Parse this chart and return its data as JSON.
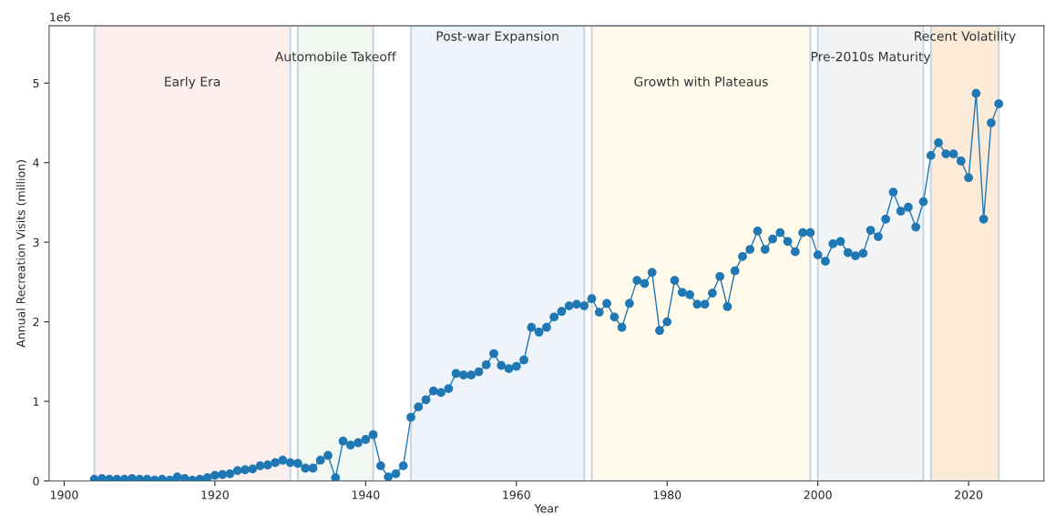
{
  "chart_data": {
    "type": "line",
    "xlabel": "Year",
    "ylabel": "Annual Recreation Visits (million)",
    "annotations": [
      "1e6"
    ],
    "x": [
      1904,
      1905,
      1906,
      1907,
      1908,
      1909,
      1910,
      1911,
      1912,
      1913,
      1914,
      1915,
      1916,
      1917,
      1918,
      1919,
      1920,
      1921,
      1922,
      1923,
      1924,
      1925,
      1926,
      1927,
      1928,
      1929,
      1930,
      1931,
      1932,
      1933,
      1934,
      1935,
      1936,
      1937,
      1938,
      1939,
      1940,
      1941,
      1942,
      1943,
      1944,
      1945,
      1946,
      1947,
      1948,
      1949,
      1950,
      1951,
      1952,
      1953,
      1954,
      1955,
      1956,
      1957,
      1958,
      1959,
      1960,
      1961,
      1962,
      1963,
      1964,
      1965,
      1966,
      1967,
      1968,
      1969,
      1970,
      1971,
      1972,
      1973,
      1974,
      1975,
      1976,
      1977,
      1978,
      1979,
      1980,
      1981,
      1982,
      1983,
      1984,
      1985,
      1986,
      1987,
      1988,
      1989,
      1990,
      1991,
      1992,
      1993,
      1994,
      1995,
      1996,
      1997,
      1998,
      1999,
      2000,
      2001,
      2002,
      2003,
      2004,
      2005,
      2006,
      2007,
      2008,
      2009,
      2010,
      2011,
      2012,
      2013,
      2014,
      2015,
      2016,
      2017,
      2018,
      2019,
      2020,
      2021,
      2022,
      2023,
      2024
    ],
    "series": [
      {
        "color": "#1f77b4",
        "values": [
          0.02,
          0.03,
          0.02,
          0.02,
          0.02,
          0.03,
          0.02,
          0.02,
          0.01,
          0.02,
          0.01,
          0.05,
          0.03,
          0.01,
          0.02,
          0.04,
          0.07,
          0.08,
          0.09,
          0.13,
          0.14,
          0.15,
          0.19,
          0.2,
          0.23,
          0.26,
          0.23,
          0.22,
          0.16,
          0.16,
          0.26,
          0.32,
          0.04,
          0.5,
          0.45,
          0.48,
          0.52,
          0.58,
          0.19,
          0.05,
          0.09,
          0.19,
          0.8,
          0.93,
          1.02,
          1.13,
          1.11,
          1.16,
          1.35,
          1.33,
          1.33,
          1.37,
          1.46,
          1.6,
          1.45,
          1.41,
          1.44,
          1.52,
          1.93,
          1.87,
          1.93,
          2.06,
          2.13,
          2.2,
          2.22,
          2.2,
          2.29,
          2.12,
          2.23,
          2.06,
          1.93,
          2.23,
          2.52,
          2.48,
          2.62,
          1.89,
          2.0,
          2.52,
          2.37,
          2.34,
          2.22,
          2.22,
          2.36,
          2.57,
          2.19,
          2.64,
          2.82,
          2.91,
          3.14,
          2.91,
          3.04,
          3.12,
          3.01,
          2.88,
          3.12,
          3.12,
          2.84,
          2.76,
          2.98,
          3.01,
          2.87,
          2.83,
          2.86,
          3.15,
          3.07,
          3.29,
          3.63,
          3.39,
          3.44,
          3.19,
          3.51,
          4.09,
          4.25,
          4.11,
          4.11,
          4.02,
          3.81,
          4.87,
          3.29,
          4.5,
          4.74
        ]
      }
    ],
    "marker": "circle",
    "line_style": "solid",
    "grid": false,
    "xlim": [
      1898,
      2030
    ],
    "xticks": [
      1900,
      1920,
      1940,
      1960,
      1980,
      2000,
      2020
    ],
    "ylim": [
      0,
      5.72
    ],
    "yticks": [
      0,
      1,
      2,
      3,
      4,
      5
    ],
    "bands": [
      {
        "axis": "x",
        "from": 1904,
        "to": 1930,
        "label": "Early Era",
        "color": "#fcefee"
      },
      {
        "axis": "x",
        "from": 1931,
        "to": 1941,
        "label": "Automobile Takeoff",
        "color": "#f1f7f1"
      },
      {
        "axis": "x",
        "from": 1946,
        "to": 1969,
        "label": "Post-war Expansion",
        "color": "#eef4fa"
      },
      {
        "axis": "x",
        "from": 1970,
        "to": 1999,
        "label": "Growth with Plateaus",
        "color": "#fffae9"
      },
      {
        "axis": "x",
        "from": 2000,
        "to": 2014,
        "label": "Pre-2010s Maturity",
        "color": "#f3f4f6"
      },
      {
        "axis": "x",
        "from": 2015,
        "to": 2024,
        "label": "Recent Volatility",
        "color": "#fdebd9"
      }
    ]
  }
}
